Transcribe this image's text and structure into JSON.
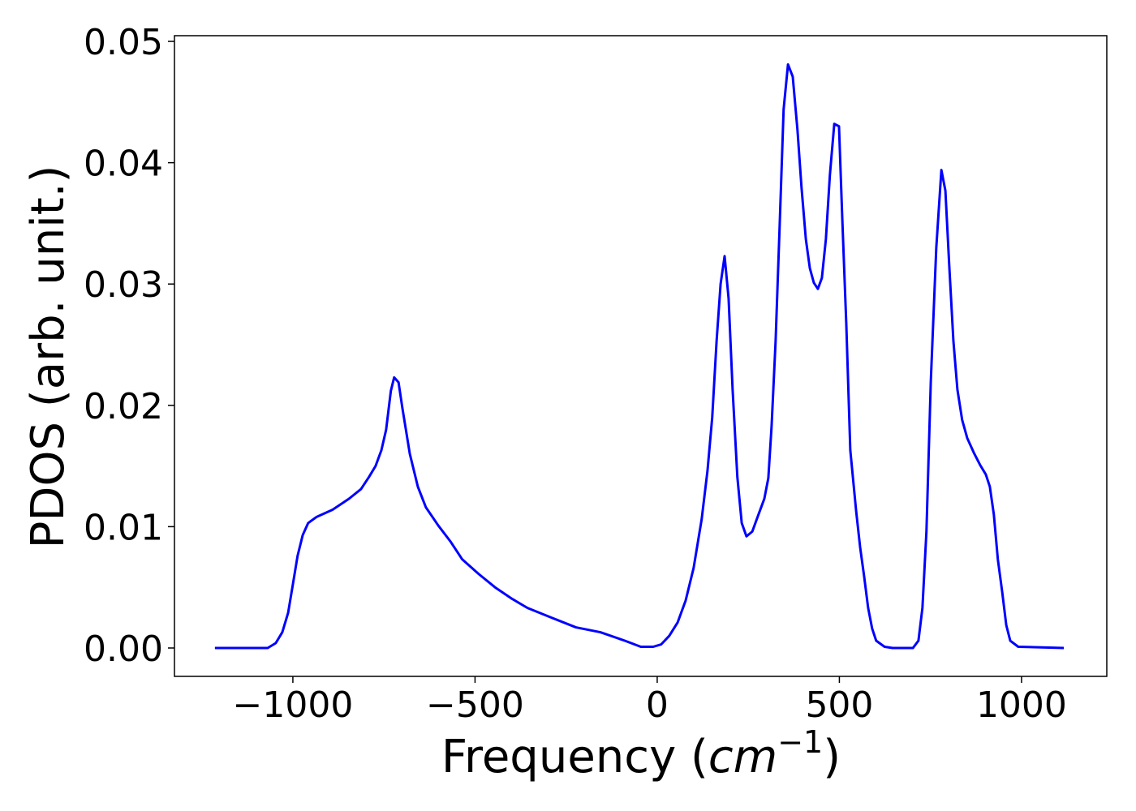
{
  "chart_data": {
    "type": "line",
    "xlabel": [
      "Frequency (",
      "cm",
      "−1",
      ")"
    ],
    "ylabel": "PDOS (arb. unit.)",
    "xlim": [
      -1325,
      1234
    ],
    "ylim": [
      -0.00234,
      0.05047
    ],
    "xticks": [
      {
        "value": -1000,
        "label": "−1000"
      },
      {
        "value": -500,
        "label": "−500"
      },
      0,
      500,
      1000
    ],
    "yticks": [
      {
        "value": 0,
        "label": "0.00"
      },
      0.01,
      0.02,
      0.03,
      0.04,
      0.05
    ],
    "grid": false,
    "series": [
      {
        "color": "#0000ff",
        "x": [
          -1214,
          -1069,
          -1047,
          -1029,
          -1013,
          -998,
          -987,
          -973,
          -958,
          -935,
          -891,
          -846,
          -813,
          -791,
          -773,
          -757,
          -744,
          -731,
          -722,
          -710,
          -699,
          -679,
          -657,
          -635,
          -601,
          -568,
          -535,
          -490,
          -445,
          -401,
          -356,
          -290,
          -223,
          -156,
          -89,
          -45,
          -11,
          11,
          33,
          56,
          78,
          100,
          122,
          138,
          151,
          163,
          174,
          185,
          196,
          207,
          220,
          232,
          245,
          261,
          278,
          294,
          305,
          314,
          325,
          336,
          347,
          359,
          372,
          385,
          396,
          408,
          419,
          430,
          441,
          452,
          463,
          474,
          486,
          499,
          508,
          519,
          530,
          546,
          557,
          568,
          579,
          590,
          601,
          624,
          646,
          702,
          717,
          728,
          739,
          751,
          766,
          780,
          791,
          802,
          813,
          824,
          837,
          851,
          869,
          886,
          902,
          913,
          924,
          935,
          947,
          958,
          969,
          991,
          1116
        ],
        "values": [
          0,
          0,
          0.0004,
          0.0013,
          0.0029,
          0.0056,
          0.0076,
          0.0093,
          0.0103,
          0.0108,
          0.0114,
          0.0123,
          0.0131,
          0.0141,
          0.015,
          0.0163,
          0.018,
          0.0212,
          0.0223,
          0.0219,
          0.0197,
          0.016,
          0.0133,
          0.0116,
          0.0101,
          0.0088,
          0.0073,
          0.0061,
          0.005,
          0.0041,
          0.0033,
          0.0025,
          0.0017,
          0.0013,
          0.0006,
          0.0001,
          0.0001,
          0.0003,
          0.001,
          0.0021,
          0.0039,
          0.0066,
          0.0106,
          0.0146,
          0.019,
          0.0253,
          0.03,
          0.0323,
          0.0288,
          0.0213,
          0.0141,
          0.0103,
          0.0092,
          0.0096,
          0.011,
          0.0123,
          0.014,
          0.0183,
          0.0253,
          0.0347,
          0.0444,
          0.0481,
          0.0471,
          0.0427,
          0.038,
          0.0337,
          0.0313,
          0.0301,
          0.0296,
          0.0305,
          0.0337,
          0.039,
          0.0432,
          0.043,
          0.0354,
          0.0267,
          0.0163,
          0.0113,
          0.0083,
          0.0059,
          0.0033,
          0.0016,
          0.0006,
          0.0001,
          0,
          0,
          0.0006,
          0.0033,
          0.0096,
          0.022,
          0.033,
          0.0394,
          0.0377,
          0.0313,
          0.0253,
          0.0213,
          0.0188,
          0.0173,
          0.0161,
          0.0151,
          0.0143,
          0.0133,
          0.011,
          0.0073,
          0.0046,
          0.0019,
          0.0006,
          0.0001,
          0
        ]
      }
    ]
  }
}
